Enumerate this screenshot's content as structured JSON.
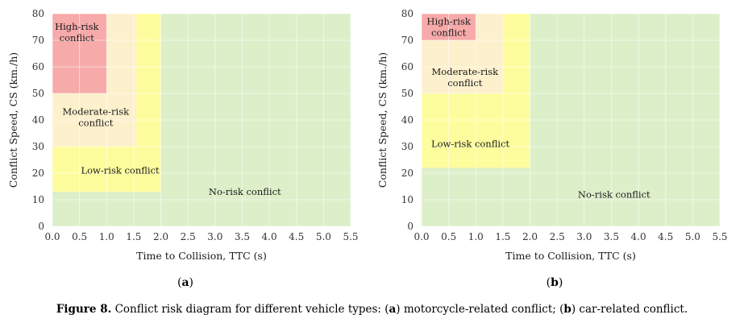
{
  "chart_data": [
    {
      "type": "area",
      "panel": "(a)",
      "panel_letter": "a",
      "xlabel": "Time to Collision, TTC (s)",
      "ylabel": "Conflict Speed, CS (km./h)",
      "xlim": [
        0,
        5.5
      ],
      "ylim": [
        0,
        80
      ],
      "x_ticks": [
        "0.0",
        "0.5",
        "1.0",
        "1.5",
        "2.0",
        "2.5",
        "3.0",
        "3.5",
        "4.0",
        "4.5",
        "5.0",
        "5.5"
      ],
      "y_ticks": [
        "0",
        "10",
        "20",
        "30",
        "40",
        "50",
        "60",
        "70",
        "80"
      ],
      "grid": true,
      "regions": [
        {
          "name": "No-risk conflict",
          "label": "No-risk conflict",
          "ttc": [
            0,
            5.5
          ],
          "cs": [
            0,
            80
          ],
          "color": "#dcefc9",
          "label_at": [
            3.55,
            13
          ]
        },
        {
          "name": "Low-risk conflict",
          "label": "Low-risk conflict",
          "ttc": [
            0,
            2.0
          ],
          "cs": [
            13,
            80
          ],
          "color": "#fdfd9e",
          "label_at": [
            1.25,
            21
          ]
        },
        {
          "name": "Moderate-risk conflict",
          "label": "Moderate-risk\nconflict",
          "ttc": [
            0,
            1.55
          ],
          "cs": [
            30,
            80
          ],
          "color": "#fdf0cc",
          "label_at": [
            0.8,
            41
          ]
        },
        {
          "name": "High-risk conflict",
          "label": "High-risk\nconflict",
          "ttc": [
            0,
            1.0
          ],
          "cs": [
            50,
            80
          ],
          "color": "#f7aaaa",
          "label_at": [
            0.45,
            73
          ]
        }
      ]
    },
    {
      "type": "area",
      "panel": "(b)",
      "panel_letter": "b",
      "xlabel": "Time to Collision, TTC (s)",
      "ylabel": "Conflict Speed, CS (km./h)",
      "xlim": [
        0,
        5.5
      ],
      "ylim": [
        0,
        80
      ],
      "x_ticks": [
        "0.0",
        "0.5",
        "1.0",
        "1.5",
        "2.0",
        "2.5",
        "3.0",
        "3.5",
        "4.0",
        "4.5",
        "5.0",
        "5.5"
      ],
      "y_ticks": [
        "0",
        "10",
        "20",
        "30",
        "40",
        "50",
        "60",
        "70",
        "80"
      ],
      "grid": true,
      "regions": [
        {
          "name": "No-risk conflict",
          "label": "No-risk conflict",
          "ttc": [
            0,
            5.5
          ],
          "cs": [
            0,
            80
          ],
          "color": "#dcefc9",
          "label_at": [
            3.55,
            12
          ]
        },
        {
          "name": "Low-risk conflict",
          "label": "Low-risk conflict",
          "ttc": [
            0,
            2.0
          ],
          "cs": [
            22,
            80
          ],
          "color": "#fdfd9e",
          "label_at": [
            0.9,
            31
          ]
        },
        {
          "name": "Moderate-risk conflict",
          "label": "Moderate-risk\nconflict",
          "ttc": [
            0,
            1.5
          ],
          "cs": [
            50,
            80
          ],
          "color": "#fdf0cc",
          "label_at": [
            0.8,
            56
          ]
        },
        {
          "name": "High-risk conflict",
          "label": "High-risk\nconflict",
          "ttc": [
            0,
            1.0
          ],
          "cs": [
            70,
            80
          ],
          "color": "#f7aaaa",
          "label_at": [
            0.5,
            75
          ]
        }
      ]
    }
  ],
  "caption": {
    "figure": "Figure 8.",
    "text_1": " Conflict risk diagram for different vehicle types: (",
    "a": "a",
    "text_2": ") motorcycle-related conflict; (",
    "b": "b",
    "text_3": ") car-related conflict."
  }
}
